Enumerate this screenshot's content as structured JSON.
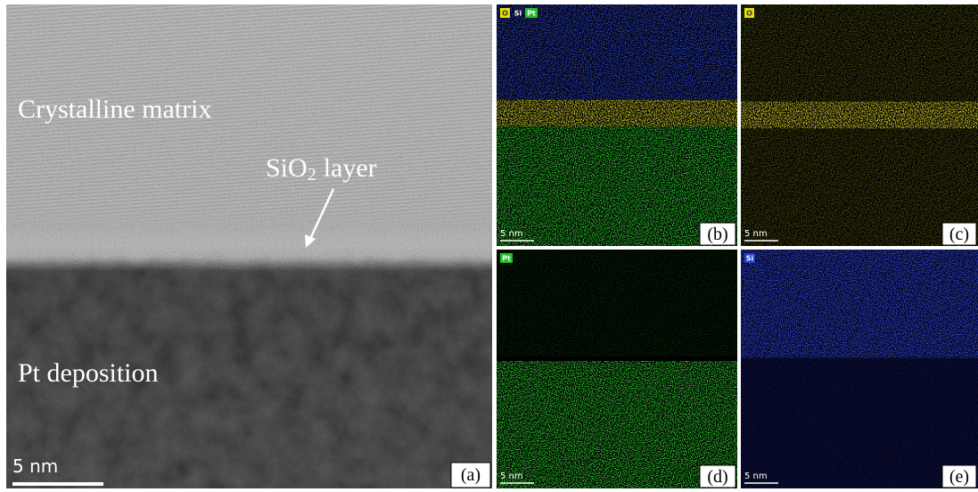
{
  "panels": [
    {
      "label": "(a)",
      "scale_bar": "5 nm",
      "annotations": {
        "matrix": "Crystalline matrix",
        "layer": "SiO",
        "layer_subscript": "2",
        "layer_suffix": "layer",
        "deposition": "Pt deposition"
      }
    },
    {
      "label": "(b)",
      "scale_bar": "5 nm",
      "elements": [
        "O",
        "Si",
        "Pt"
      ]
    },
    {
      "label": "(c)",
      "scale_bar": "5 nm",
      "elements": [
        "O"
      ]
    },
    {
      "label": "(d)",
      "scale_bar": "5 nm",
      "elements": [
        "Pt"
      ]
    },
    {
      "label": "(e)",
      "scale_bar": "5 nm",
      "elements": [
        "Si"
      ]
    }
  ]
}
